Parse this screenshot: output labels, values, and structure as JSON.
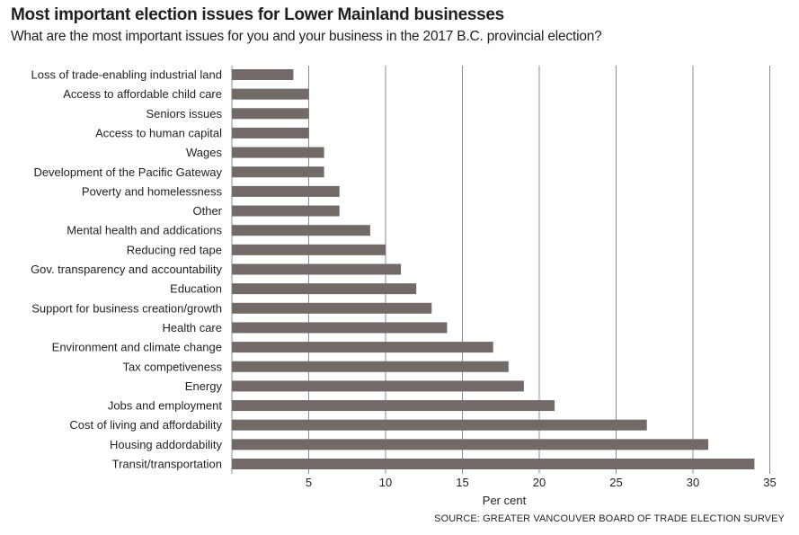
{
  "header": {
    "title": "Most important election issues for Lower Mainland businesses",
    "subtitle": "What are the most important issues for you and your business in the 2017 B.C. provincial election?"
  },
  "source": "SOURCE: GREATER VANCOUVER BOARD OF TRADE ELECTION SURVEY",
  "colors": {
    "bar": "#716a66",
    "grid": "#8c8c8c",
    "text": "#231f20"
  },
  "chart_data": {
    "type": "bar",
    "orientation": "horizontal",
    "title": "Most important election issues for Lower Mainland businesses",
    "subtitle": "What are the most important issues for you and your business in the 2017 B.C. provincial election?",
    "xlabel": "Per cent",
    "ylabel": "",
    "xlim": [
      0,
      35
    ],
    "xticks": [
      5,
      10,
      15,
      20,
      25,
      30,
      35
    ],
    "grid": "vertical",
    "legend": "none",
    "categories": [
      "Loss of trade-enabling industrial land",
      "Access to affordable child care",
      "Seniors issues",
      "Access to human capital",
      "Wages",
      "Development of the Pacific Gateway",
      "Poverty and homelessness",
      "Other",
      "Mental health and addications",
      "Reducing red tape",
      "Gov. transparency and accountability",
      "Education",
      "Support for business creation/growth",
      "Health care",
      "Environment and climate change",
      "Tax competiveness",
      "Energy",
      "Jobs and employment",
      "Cost of living and affordability",
      "Housing addordability",
      "Transit/transportation"
    ],
    "values": [
      4,
      5,
      5,
      5,
      6,
      6,
      7,
      7,
      9,
      10,
      11,
      12,
      13,
      14,
      17,
      18,
      19,
      21,
      27,
      31,
      34
    ]
  }
}
